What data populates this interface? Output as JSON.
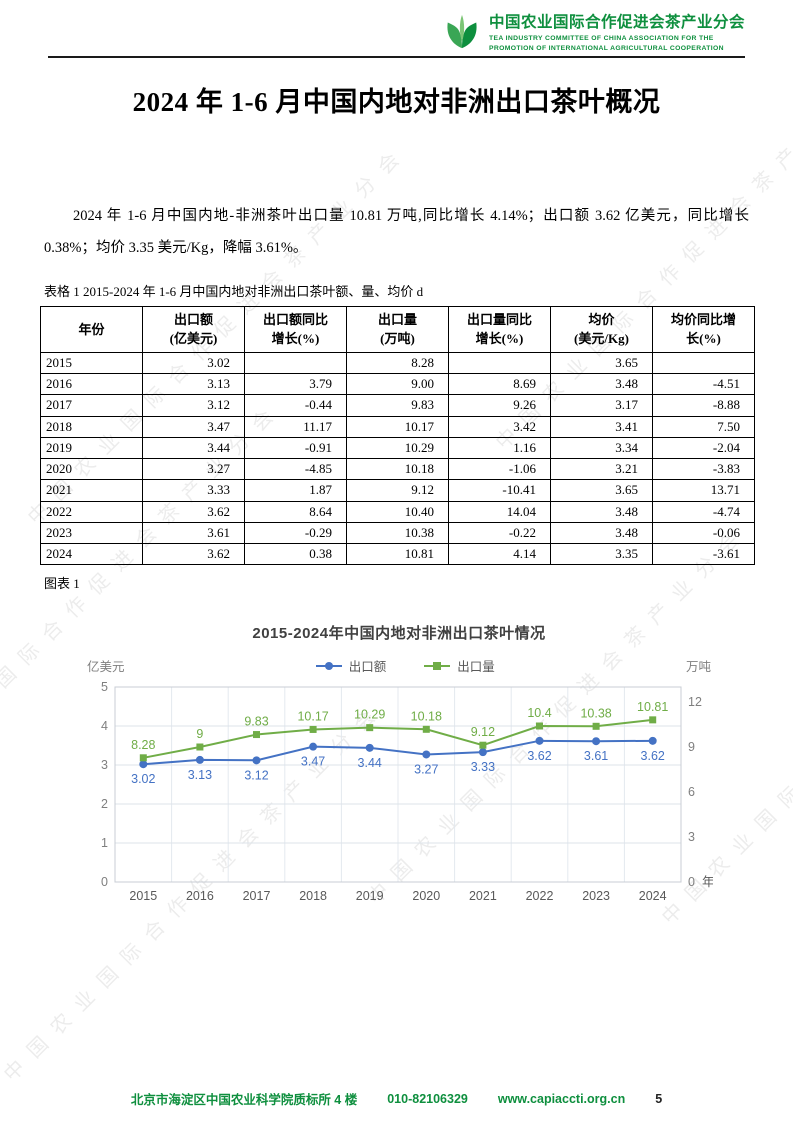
{
  "page": {
    "number": "5"
  },
  "header": {
    "org_name_cn": "中国农业国际合作促进会茶产业分会",
    "org_name_en": "TEA INDUSTRY COMMITTEE OF CHINA ASSOCIATION FOR THE\nPROMOTION OF INTERNATIONAL AGRICULTURAL COOPERATION",
    "brand_green": "#0e8f3e"
  },
  "title": "2024 年 1-6 月中国内地对非洲出口茶叶概况",
  "body_paragraph": "2024 年 1-6 月中国内地-非洲茶叶出口量 10.81 万吨,同比增长 4.14%；出口额 3.62 亿美元，同比增长 0.38%；均价 3.35 美元/Kg，降幅 3.61%。",
  "table_caption": "表格 1 2015-2024 年 1-6 月中国内地对非洲出口茶叶额、量、均价 d",
  "table": {
    "headers": [
      "年份",
      "出口额\n(亿美元)",
      "出口额同比\n增长(%)",
      "出口量\n(万吨)",
      "出口量同比\n增长(%)",
      "均价\n(美元/Kg)",
      "均价同比增\n长(%)"
    ],
    "rows": [
      [
        "2015",
        "3.02",
        "",
        "8.28",
        "",
        "3.65",
        ""
      ],
      [
        "2016",
        "3.13",
        "3.79",
        "9.00",
        "8.69",
        "3.48",
        "-4.51"
      ],
      [
        "2017",
        "3.12",
        "-0.44",
        "9.83",
        "9.26",
        "3.17",
        "-8.88"
      ],
      [
        "2018",
        "3.47",
        "11.17",
        "10.17",
        "3.42",
        "3.41",
        "7.50"
      ],
      [
        "2019",
        "3.44",
        "-0.91",
        "10.29",
        "1.16",
        "3.34",
        "-2.04"
      ],
      [
        "2020",
        "3.27",
        "-4.85",
        "10.18",
        "-1.06",
        "3.21",
        "-3.83"
      ],
      [
        "2021",
        "3.33",
        "1.87",
        "9.12",
        "-10.41",
        "3.65",
        "13.71"
      ],
      [
        "2022",
        "3.62",
        "8.64",
        "10.40",
        "14.04",
        "3.48",
        "-4.74"
      ],
      [
        "2023",
        "3.61",
        "-0.29",
        "10.38",
        "-0.22",
        "3.48",
        "-0.06"
      ],
      [
        "2024",
        "3.62",
        "0.38",
        "10.81",
        "4.14",
        "3.35",
        "-3.61"
      ]
    ]
  },
  "figure_label": "图表 1",
  "chart_data": {
    "type": "line",
    "title": "2015-2024年中国内地对非洲出口茶叶情况",
    "categories": [
      "2015",
      "2016",
      "2017",
      "2018",
      "2019",
      "2020",
      "2021",
      "2022",
      "2023",
      "2024"
    ],
    "series": [
      {
        "name": "出口额",
        "axis": "left",
        "color": "#4472c4",
        "marker": "circle",
        "label_position": "below",
        "values": [
          3.02,
          3.13,
          3.12,
          3.47,
          3.44,
          3.27,
          3.33,
          3.62,
          3.61,
          3.62
        ]
      },
      {
        "name": "出口量",
        "axis": "right",
        "color": "#70ad47",
        "marker": "square",
        "label_position": "above",
        "values": [
          8.28,
          9,
          9.83,
          10.17,
          10.29,
          10.18,
          9.12,
          10.4,
          10.38,
          10.81
        ]
      }
    ],
    "left_axis": {
      "label": "亿美元",
      "min": 0,
      "max": 5,
      "ticks": [
        0,
        1,
        2,
        3,
        4,
        5
      ]
    },
    "right_axis": {
      "label": "万吨",
      "min": 0,
      "max": 13,
      "ticks": [
        0,
        3,
        6,
        9,
        12
      ]
    },
    "x_axis_label": "年份",
    "legend_position": "top",
    "grid": true
  },
  "watermark": "中国农业国际合作促进会茶产业分会",
  "footer": {
    "address": "北京市海淀区中国农业科学院质标所 4 楼",
    "phone": "010-82106329",
    "website": "www.capiaccti.org.cn"
  }
}
